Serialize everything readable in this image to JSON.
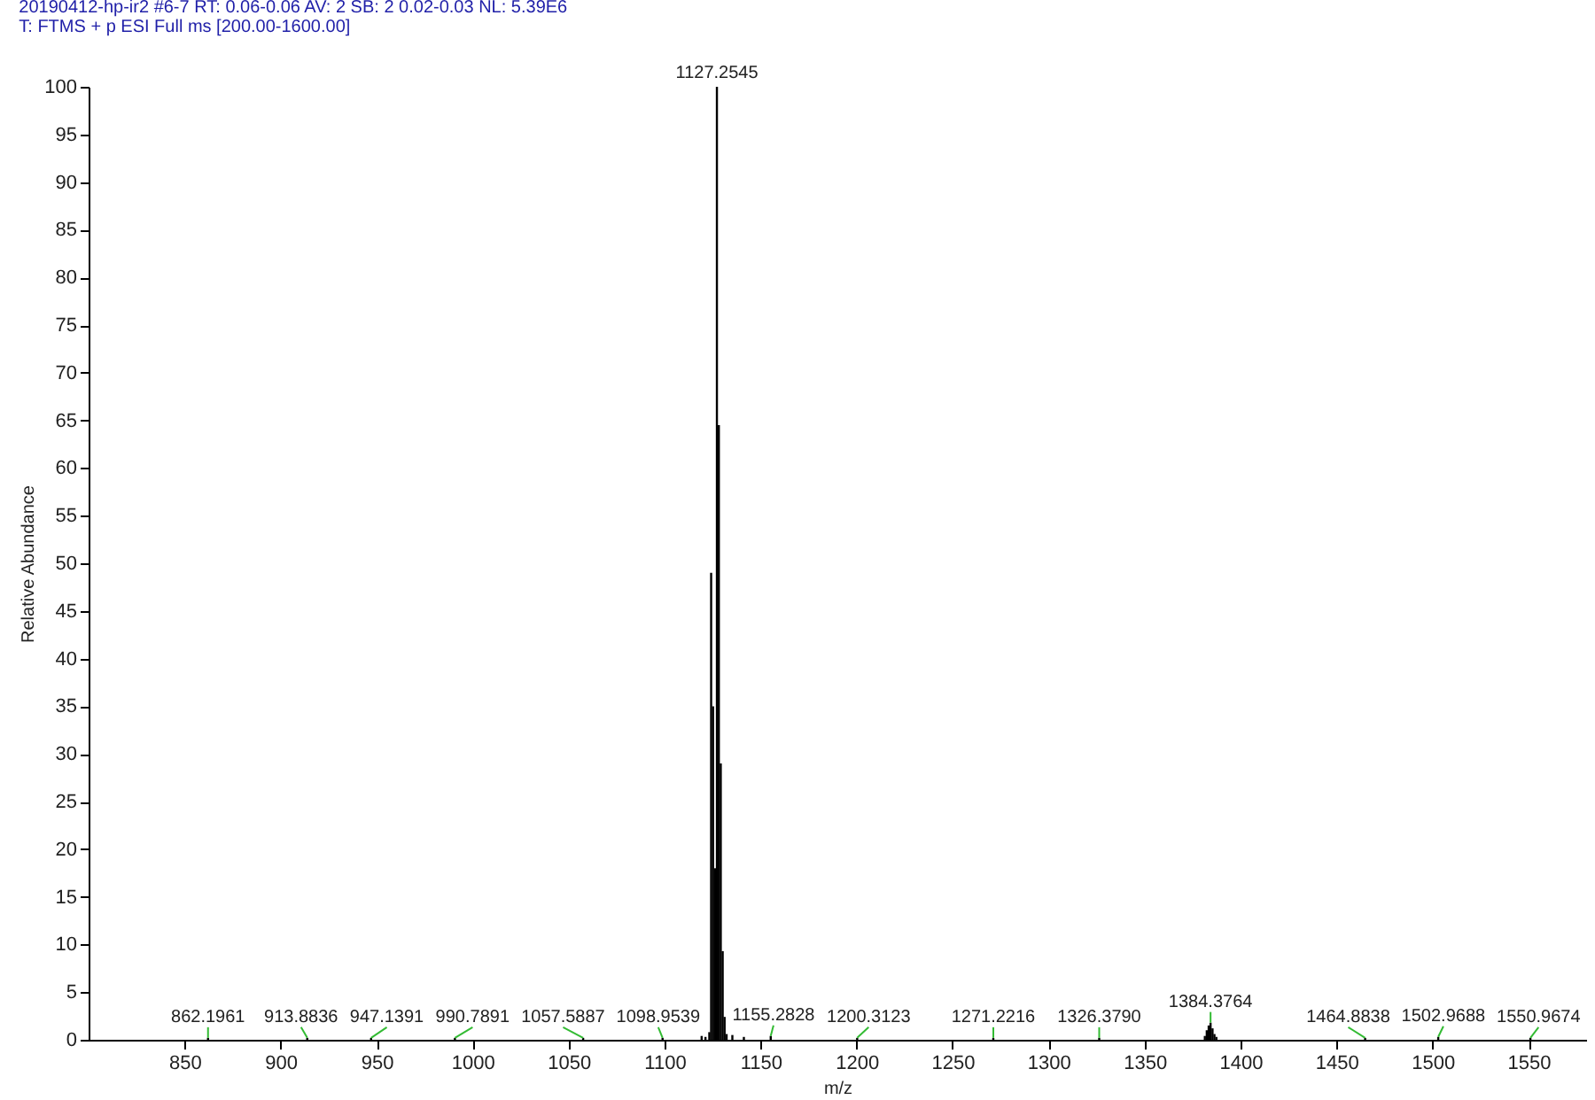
{
  "chart_data": {
    "type": "bar",
    "title": "20190412-hp-ir2 #6-7   RT: 0.06-0.06   AV: 2   SB: 2  0.02-0.03   NL: 5.39E6",
    "subtitle": "T: FTMS + p ESI Full ms [200.00-1600.00]",
    "xlabel": "m/z",
    "ylabel": "Relative Abundance",
    "series": [
      {
        "color": "#000000",
        "x": [
          862.1961,
          913.8836,
          947.1391,
          990.7891,
          1057.5887,
          1098.9539,
          1119.3,
          1121.3,
          1123.3,
          1124.25,
          1125.25,
          1126.25,
          1127.2545,
          1128.26,
          1129.26,
          1130.26,
          1131.26,
          1132.3,
          1135.3,
          1141.3,
          1155.2828,
          1200.3123,
          1271.2216,
          1326.379,
          1381.4,
          1382.4,
          1383.4,
          1384.3764,
          1385.4,
          1386.4,
          1387.4,
          1464.8838,
          1502.9688,
          1550.9674
        ],
        "values": [
          0.2,
          0.2,
          0.2,
          0.2,
          0.2,
          0.2,
          0.4,
          0.3,
          0.8,
          49,
          35,
          18,
          100,
          64.5,
          29,
          9.3,
          2.4,
          0.6,
          0.5,
          0.3,
          0.4,
          0.2,
          0.2,
          0.2,
          0.4,
          1.0,
          1.5,
          1.8,
          1.2,
          0.6,
          0.3,
          0.2,
          0.3,
          0.2
        ]
      }
    ],
    "annotations": [
      {
        "text": "862.1961",
        "x": 862.1961,
        "y": 0.2
      },
      {
        "text": "913.8836",
        "x": 913.8836,
        "y": 0.2
      },
      {
        "text": "947.1391",
        "x": 947.1391,
        "y": 0.2
      },
      {
        "text": "990.7891",
        "x": 990.7891,
        "y": 0.2
      },
      {
        "text": "1057.5887",
        "x": 1057.5887,
        "y": 0.2
      },
      {
        "text": "1098.9539",
        "x": 1098.9539,
        "y": 0.2
      },
      {
        "text": "1127.2545",
        "x": 1127.2545,
        "y": 100
      },
      {
        "text": "1155.2828",
        "x": 1155.2828,
        "y": 0.4
      },
      {
        "text": "1200.3123",
        "x": 1200.3123,
        "y": 0.2
      },
      {
        "text": "1271.2216",
        "x": 1271.2216,
        "y": 0.2
      },
      {
        "text": "1326.3790",
        "x": 1326.379,
        "y": 0.2
      },
      {
        "text": "1384.3764",
        "x": 1384.3764,
        "y": 1.8
      },
      {
        "text": "1464.8838",
        "x": 1464.8838,
        "y": 0.2
      },
      {
        "text": "1502.9688",
        "x": 1502.9688,
        "y": 0.3
      },
      {
        "text": "1550.9674",
        "x": 1550.9674,
        "y": 0.2
      }
    ],
    "xlim": [
      800,
      1580
    ],
    "xticks": [
      850,
      900,
      950,
      1000,
      1050,
      1100,
      1150,
      1200,
      1250,
      1300,
      1350,
      1400,
      1450,
      1500,
      1550
    ],
    "ylim": [
      0,
      100
    ],
    "yticks": [
      0,
      5,
      10,
      15,
      20,
      25,
      30,
      35,
      40,
      45,
      50,
      55,
      60,
      65,
      70,
      75,
      80,
      85,
      90,
      95,
      100
    ]
  }
}
